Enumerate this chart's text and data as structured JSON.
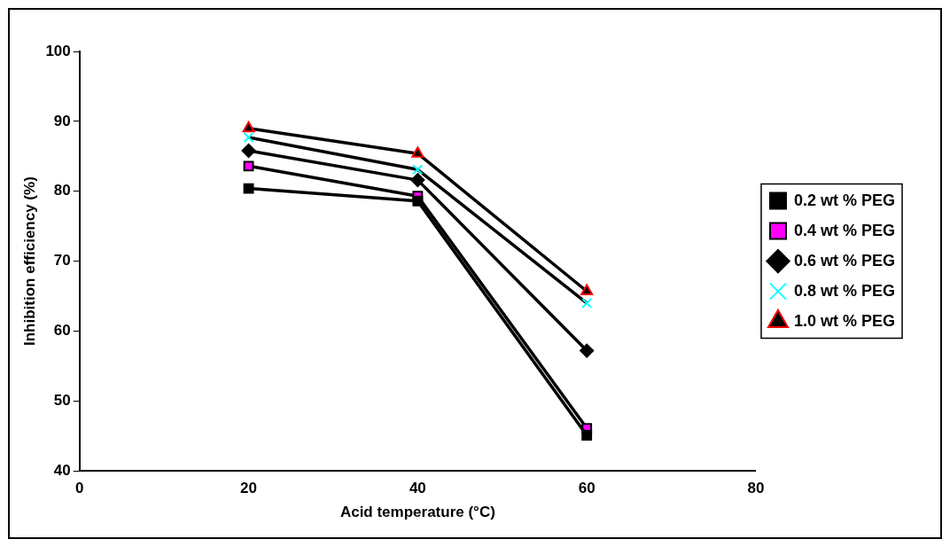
{
  "chart_data": {
    "type": "line",
    "xlabel": "Acid temperature (°C)",
    "ylabel": "Inhibition efficiency (%)",
    "x": [
      20,
      40,
      60
    ],
    "xlim": [
      0,
      80
    ],
    "xticks": [
      0,
      20,
      40,
      60,
      80
    ],
    "ylim": [
      40,
      100
    ],
    "yticks": [
      40,
      50,
      60,
      70,
      80,
      90,
      100
    ],
    "grid": false,
    "legend": "right",
    "line_style": "solid",
    "series": [
      {
        "name": "0.2 wt % PEG",
        "color": "#000000",
        "marker": "square",
        "values": [
          80.4,
          78.6,
          45.1
        ]
      },
      {
        "name": "0.4 wt % PEG",
        "color": "#ff00ff",
        "marker": "square",
        "values": [
          83.6,
          79.3,
          46.1
        ]
      },
      {
        "name": "0.6 wt % PEG",
        "color": "#000000",
        "marker": "diamond",
        "values": [
          85.8,
          81.6,
          57.2
        ]
      },
      {
        "name": "0.8 wt % PEG",
        "color": "#00ffff",
        "marker": "cross",
        "values": [
          87.7,
          83.1,
          64.0
        ]
      },
      {
        "name": "1.0 wt % PEG",
        "color": "#ff0000",
        "marker": "triangle",
        "values": [
          89.0,
          85.4,
          65.7
        ]
      }
    ]
  }
}
